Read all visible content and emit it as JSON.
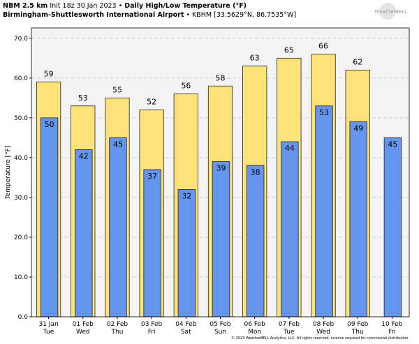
{
  "chart_data": {
    "type": "bar",
    "title": [
      "NBM 2.5 km",
      "Init 18z 30 Jan 2023 •",
      "Daily High/Low Temperature (°F)"
    ],
    "subtitle": [
      "Birmingham-Shuttlesworth International Airport",
      "• KBHM [33.5629°N, 86.7535°W]"
    ],
    "logo": "WeatherBELL",
    "footer": "© 2023 WeatherBELL Analytics, LLC. All rights reserved. License required for commercial distribution.",
    "y_label": "Temperature [°F]",
    "categories": [
      [
        "31 Jan",
        "Tue"
      ],
      [
        "01 Feb",
        "Wed"
      ],
      [
        "02 Feb",
        "Thu"
      ],
      [
        "03 Feb",
        "Fri"
      ],
      [
        "04 Feb",
        "Sat"
      ],
      [
        "05 Feb",
        "Sun"
      ],
      [
        "06 Feb",
        "Mon"
      ],
      [
        "07 Feb",
        "Tue"
      ],
      [
        "08 Feb",
        "Wed"
      ],
      [
        "09 Feb",
        "Thu"
      ],
      [
        "10 Feb",
        "Fri"
      ]
    ],
    "series": [
      {
        "color": "#fde27a",
        "values": [
          59,
          53,
          55,
          52,
          56,
          58,
          63,
          65,
          66,
          62,
          null
        ]
      },
      {
        "color": "#6495ed",
        "values": [
          50,
          42,
          45,
          37,
          32,
          39,
          38,
          44,
          53,
          49,
          45
        ]
      }
    ],
    "ylim": [
      0,
      72.6
    ],
    "yticks": [
      {
        "value": 0,
        "label": "0.0"
      },
      {
        "value": 10,
        "label": "10.0"
      },
      {
        "value": 20,
        "label": "20.0"
      },
      {
        "value": 30,
        "label": "30.0"
      },
      {
        "value": 40,
        "label": "40.0"
      },
      {
        "value": 50,
        "label": "50.0"
      },
      {
        "value": 60,
        "label": "60.0"
      },
      {
        "value": 70,
        "label": "70.0"
      }
    ],
    "grid": true
  }
}
